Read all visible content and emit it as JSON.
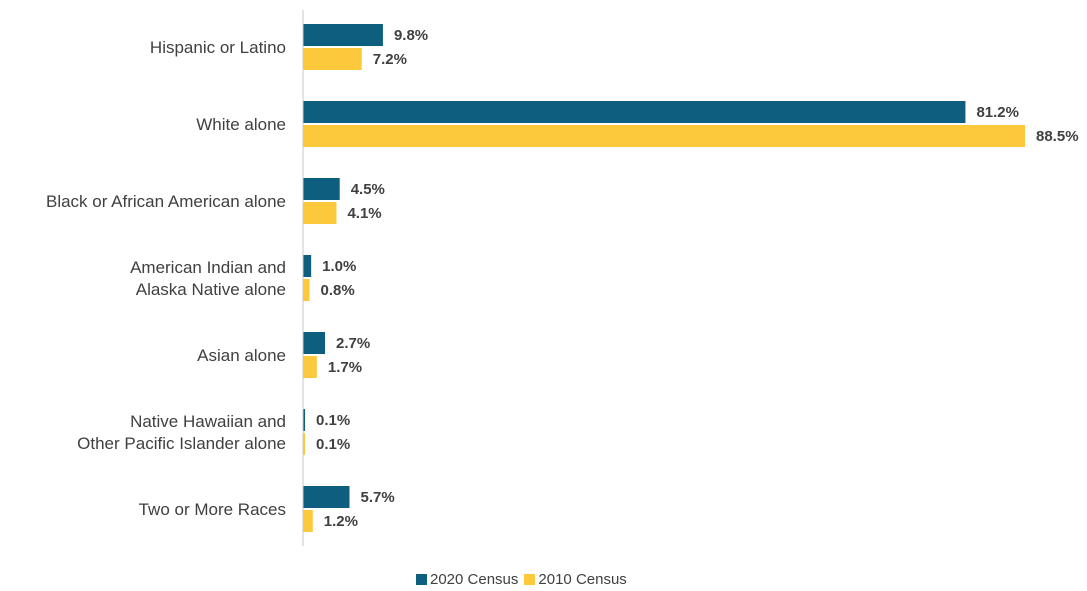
{
  "colors": {
    "series_2020": "#0e5f7f",
    "series_2010": "#fdc93c",
    "axis": "#c8c8c8"
  },
  "chart_data": {
    "type": "bar",
    "orientation": "horizontal",
    "categories": [
      [
        "Hispanic or Latino"
      ],
      [
        "White alone"
      ],
      [
        "Black or African American alone"
      ],
      [
        "American Indian and",
        "Alaska Native alone"
      ],
      [
        "Asian alone"
      ],
      [
        "Native Hawaiian and",
        "Other Pacific Islander alone"
      ],
      [
        "Two or More Races"
      ]
    ],
    "series": [
      {
        "name": "2020 Census",
        "values": [
          9.8,
          81.2,
          4.5,
          1.0,
          2.7,
          0.1,
          5.7
        ],
        "labels": [
          "9.8%",
          "81.2%",
          "4.5%",
          "1.0%",
          "2.7%",
          "0.1%",
          "5.7%"
        ]
      },
      {
        "name": "2010 Census",
        "values": [
          7.2,
          88.5,
          4.1,
          0.8,
          1.7,
          0.1,
          1.2
        ],
        "labels": [
          "7.2%",
          "88.5%",
          "4.1%",
          "0.8%",
          "1.7%",
          "0.1%",
          "1.2%"
        ]
      }
    ],
    "xlim": [
      0,
      88.5
    ],
    "grid": false,
    "legend_position": "bottom-center"
  },
  "legend": {
    "items": [
      "2020 Census",
      "2010 Census"
    ]
  }
}
